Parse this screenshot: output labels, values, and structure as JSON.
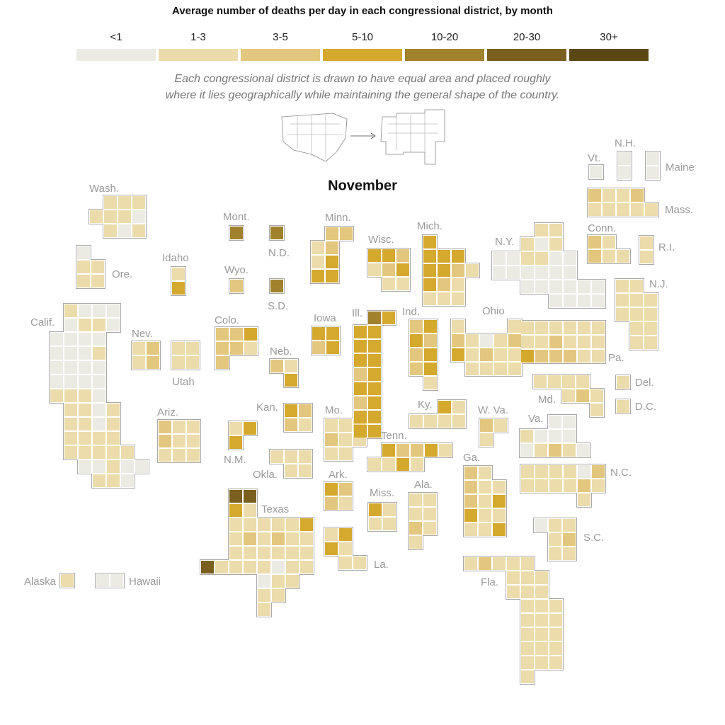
{
  "map": {
    "title": "Average number of deaths per day in each congressional district, by month",
    "legend": {
      "bins": [
        "<1",
        "1-3",
        "3-5",
        "5-10",
        "10-20",
        "20-30",
        "30+"
      ],
      "colors": [
        "#ecebe3",
        "#ecdcac",
        "#e3c77f",
        "#d4a92e",
        "#a0812c",
        "#7a5f1f",
        "#5a4714"
      ]
    },
    "note": [
      "Each congressional district is drawn to have equal area and placed roughly",
      "where it lies geographically while maintaining the general shape of the country."
    ],
    "month": "November",
    "states": [
      {
        "name": "Wash.",
        "values": [
          "1-3",
          "1-3",
          "1-3",
          "1-3",
          "1-3",
          "1-3",
          "<1",
          "1-3",
          "<1",
          "1-3"
        ]
      },
      {
        "name": "Ore.",
        "values": [
          "<1",
          "1-3",
          "1-3",
          "1-3",
          "1-3"
        ]
      },
      {
        "name": "Calif.",
        "values": [
          "1-3",
          "<1",
          "<1",
          "<1",
          "<1",
          "1-3",
          "1-3",
          "<1",
          "<1",
          "<1",
          "<1",
          "<1",
          "<1",
          "<1",
          "<1",
          "1-3",
          "<1",
          "<1",
          "<1",
          "<1",
          "<1",
          "<1",
          "<1",
          "<1",
          "1-3",
          "1-3",
          "1-3",
          "<1",
          "1-3",
          "1-3",
          "<1",
          "1-3",
          "1-3",
          "1-3",
          "<1",
          "1-3",
          "1-3",
          "1-3",
          "1-3",
          "1-3",
          "1-3",
          "1-3",
          "1-3",
          "1-3",
          "1-3",
          "<1",
          "<1",
          "1-3",
          "<1",
          "<1",
          "1-3",
          "1-3",
          "<1"
        ]
      },
      {
        "name": "Nev.",
        "values": [
          "1-3",
          "3-5",
          "1-3",
          "3-5"
        ]
      },
      {
        "name": "Utah",
        "values": [
          "1-3",
          "1-3",
          "1-3",
          "1-3"
        ]
      },
      {
        "name": "Idaho",
        "values": [
          "1-3",
          "5-10"
        ]
      },
      {
        "name": "Ariz.",
        "values": [
          "3-5",
          "1-3",
          "1-3",
          "3-5",
          "1-3",
          "1-3",
          "1-3",
          "1-3",
          "1-3"
        ]
      },
      {
        "name": "Mont.",
        "values": [
          "10-20"
        ]
      },
      {
        "name": "Wyo.",
        "values": [
          "3-5"
        ]
      },
      {
        "name": "Colo.",
        "values": [
          "3-5",
          "3-5",
          "5-10",
          "3-5",
          "3-5",
          "1-3",
          "3-5"
        ]
      },
      {
        "name": "N.M.",
        "values": [
          "1-3",
          "5-10",
          "5-10"
        ]
      },
      {
        "name": "N.D.",
        "values": [
          "10-20"
        ]
      },
      {
        "name": "S.D.",
        "values": [
          "10-20"
        ]
      },
      {
        "name": "Neb.",
        "values": [
          "3-5",
          "1-3",
          "5-10"
        ]
      },
      {
        "name": "Kan.",
        "values": [
          "5-10",
          "3-5",
          "3-5",
          "1-3"
        ]
      },
      {
        "name": "Okla.",
        "values": [
          "1-3",
          "1-3",
          "1-3",
          "1-3",
          "1-3"
        ]
      },
      {
        "name": "Texas",
        "values": [
          "20-30",
          "20-30",
          "5-10",
          "1-3",
          "1-3",
          "1-3",
          "1-3",
          "1-3",
          "1-3",
          "5-10",
          "1-3",
          "3-5",
          "1-3",
          "3-5",
          "1-3",
          "1-3",
          "1-3",
          "1-3",
          "1-3",
          "1-3",
          "1-3",
          "1-3",
          "20-30",
          "1-3",
          "1-3",
          "1-3",
          "1-3",
          "<1",
          "1-3",
          "1-3",
          "<1",
          "1-3",
          "1-3",
          "1-3",
          "1-3",
          "1-3"
        ]
      },
      {
        "name": "Minn.",
        "values": [
          "3-5",
          "3-5",
          "1-3",
          "3-5",
          "1-3",
          "5-10",
          "5-10",
          "5-10"
        ]
      },
      {
        "name": "Iowa",
        "values": [
          "5-10",
          "5-10",
          "3-5",
          "5-10"
        ]
      },
      {
        "name": "Mo.",
        "values": [
          "1-3",
          "1-3",
          "1-3",
          "3-5",
          "1-3",
          "1-3",
          "1-3",
          "1-3"
        ]
      },
      {
        "name": "Ark.",
        "values": [
          "5-10",
          "3-5",
          "3-5",
          "1-3"
        ]
      },
      {
        "name": "La.",
        "values": [
          "1-3",
          "5-10",
          "5-10",
          "1-3",
          "1-3",
          "1-3"
        ]
      },
      {
        "name": "Wisc.",
        "values": [
          "5-10",
          "5-10",
          "3-5",
          "1-3",
          "3-5",
          "5-10",
          "1-3",
          "1-3"
        ]
      },
      {
        "name": "Ill.",
        "values": [
          "10-20",
          "5-10",
          "5-10",
          "5-10",
          "5-10",
          "5-10",
          "5-10",
          "5-10",
          "3-5",
          "5-10",
          "5-10",
          "5-10",
          "3-5",
          "5-10",
          "5-10",
          "5-10",
          "5-10",
          "5-10"
        ]
      },
      {
        "name": "Mich.",
        "values": [
          "5-10",
          "5-10",
          "5-10",
          "5-10",
          "5-10",
          "5-10",
          "3-5",
          "1-3",
          "5-10",
          "3-5",
          "1-3",
          "1-3",
          "1-3",
          "1-3"
        ]
      },
      {
        "name": "Ind.",
        "values": [
          "3-5",
          "5-10",
          "5-10",
          "3-5",
          "3-5",
          "5-10",
          "3-5",
          "5-10",
          "1-3"
        ]
      },
      {
        "name": "Ohio",
        "values": [
          "1-3",
          "1-3",
          "3-5",
          "1-3",
          "<1",
          "1-3",
          "3-5",
          "5-10",
          "1-3",
          "3-5",
          "1-3",
          "1-3",
          "1-3",
          "1-3",
          "1-3",
          "1-3"
        ]
      },
      {
        "name": "Ky.",
        "values": [
          "5-10",
          "1-3",
          "1-3",
          "1-3",
          "1-3",
          "1-3"
        ]
      },
      {
        "name": "Tenn.",
        "values": [
          "5-10",
          "3-5",
          "3-5",
          "5-10",
          "1-3",
          "1-3",
          "1-3",
          "5-10",
          "1-3"
        ]
      },
      {
        "name": "Miss.",
        "values": [
          "5-10",
          "1-3",
          "1-3",
          "1-3"
        ]
      },
      {
        "name": "Ala.",
        "values": [
          "1-3",
          "1-3",
          "1-3",
          "1-3",
          "3-5",
          "1-3",
          "1-3"
        ]
      },
      {
        "name": "Ga.",
        "values": [
          "3-5",
          "1-3",
          "3-5",
          "1-3",
          "1-3",
          "3-5",
          "1-3",
          "5-10",
          "5-10",
          "1-3",
          "1-3",
          "1-3",
          "1-3",
          "5-10"
        ]
      },
      {
        "name": "Fla.",
        "values": [
          "1-3",
          "3-5",
          "1-3",
          "1-3",
          "1-3",
          "1-3",
          "1-3",
          "1-3",
          "1-3",
          "1-3",
          "1-3",
          "1-3",
          "1-3",
          "1-3",
          "1-3",
          "1-3",
          "1-3",
          "1-3",
          "1-3",
          "1-3",
          "1-3",
          "1-3",
          "1-3",
          "1-3",
          "1-3",
          "1-3",
          "1-3"
        ]
      },
      {
        "name": "S.C.",
        "values": [
          "<1",
          "1-3",
          "1-3",
          "1-3",
          "3-5",
          "1-3",
          "1-3"
        ]
      },
      {
        "name": "N.C.",
        "values": [
          "1-3",
          "1-3",
          "1-3",
          "1-3",
          "<1",
          "3-5",
          "1-3",
          "1-3",
          "1-3",
          "1-3",
          "3-5",
          "1-3",
          "1-3"
        ]
      },
      {
        "name": "Va.",
        "values": [
          "<1",
          "<1",
          "1-3",
          "<1",
          "<1",
          "<1",
          "<1",
          "1-3",
          "3-5",
          "1-3",
          "<1"
        ]
      },
      {
        "name": "W. Va.",
        "values": [
          "3-5",
          "1-3",
          "1-3"
        ]
      },
      {
        "name": "Md.",
        "values": [
          "1-3",
          "1-3",
          "1-3",
          "1-3",
          "1-3",
          "3-5",
          "1-3",
          "1-3"
        ]
      },
      {
        "name": "Del.",
        "values": [
          "1-3"
        ]
      },
      {
        "name": "D.C.",
        "values": [
          "1-3"
        ]
      },
      {
        "name": "Pa.",
        "values": [
          "1-3",
          "1-3",
          "1-3",
          "1-3",
          "1-3",
          "1-3",
          "1-3",
          "1-3",
          "3-5",
          "1-3",
          "1-3",
          "1-3",
          "5-10",
          "3-5",
          "3-5",
          "3-5",
          "1-3",
          "1-3"
        ]
      },
      {
        "name": "N.J.",
        "values": [
          "1-3",
          "1-3",
          "1-3",
          "1-3",
          "1-3",
          "1-3",
          "1-3",
          "1-3",
          "1-3",
          "1-3",
          "1-3",
          "1-3"
        ]
      },
      {
        "name": "N.Y.",
        "values": [
          "1-3",
          "1-3",
          "1-3",
          "<1",
          "1-3",
          "<1",
          "<1",
          "1-3",
          "1-3",
          "<1",
          "<1",
          "<1",
          "<1",
          "<1",
          "<1",
          "<1",
          "<1",
          "<1",
          "<1",
          "<1",
          "<1",
          "<1",
          "<1",
          "<1",
          "<1",
          "<1",
          "<1"
        ]
      },
      {
        "name": "Conn.",
        "values": [
          "3-5",
          "1-3",
          "3-5",
          "1-3",
          "1-3"
        ]
      },
      {
        "name": "R.I.",
        "values": [
          "1-3",
          "1-3"
        ]
      },
      {
        "name": "Mass.",
        "values": [
          "3-5",
          "1-3",
          "1-3",
          "3-5",
          "1-3",
          "1-3",
          "1-3",
          "1-3",
          "1-3"
        ]
      },
      {
        "name": "Vt.",
        "values": [
          "<1"
        ]
      },
      {
        "name": "N.H.",
        "values": [
          "<1",
          "<1"
        ]
      },
      {
        "name": "Maine",
        "values": [
          "<1",
          "<1"
        ]
      },
      {
        "name": "Alaska",
        "values": [
          "1-3"
        ]
      },
      {
        "name": "Hawaii",
        "values": [
          "<1",
          "<1"
        ]
      }
    ]
  }
}
